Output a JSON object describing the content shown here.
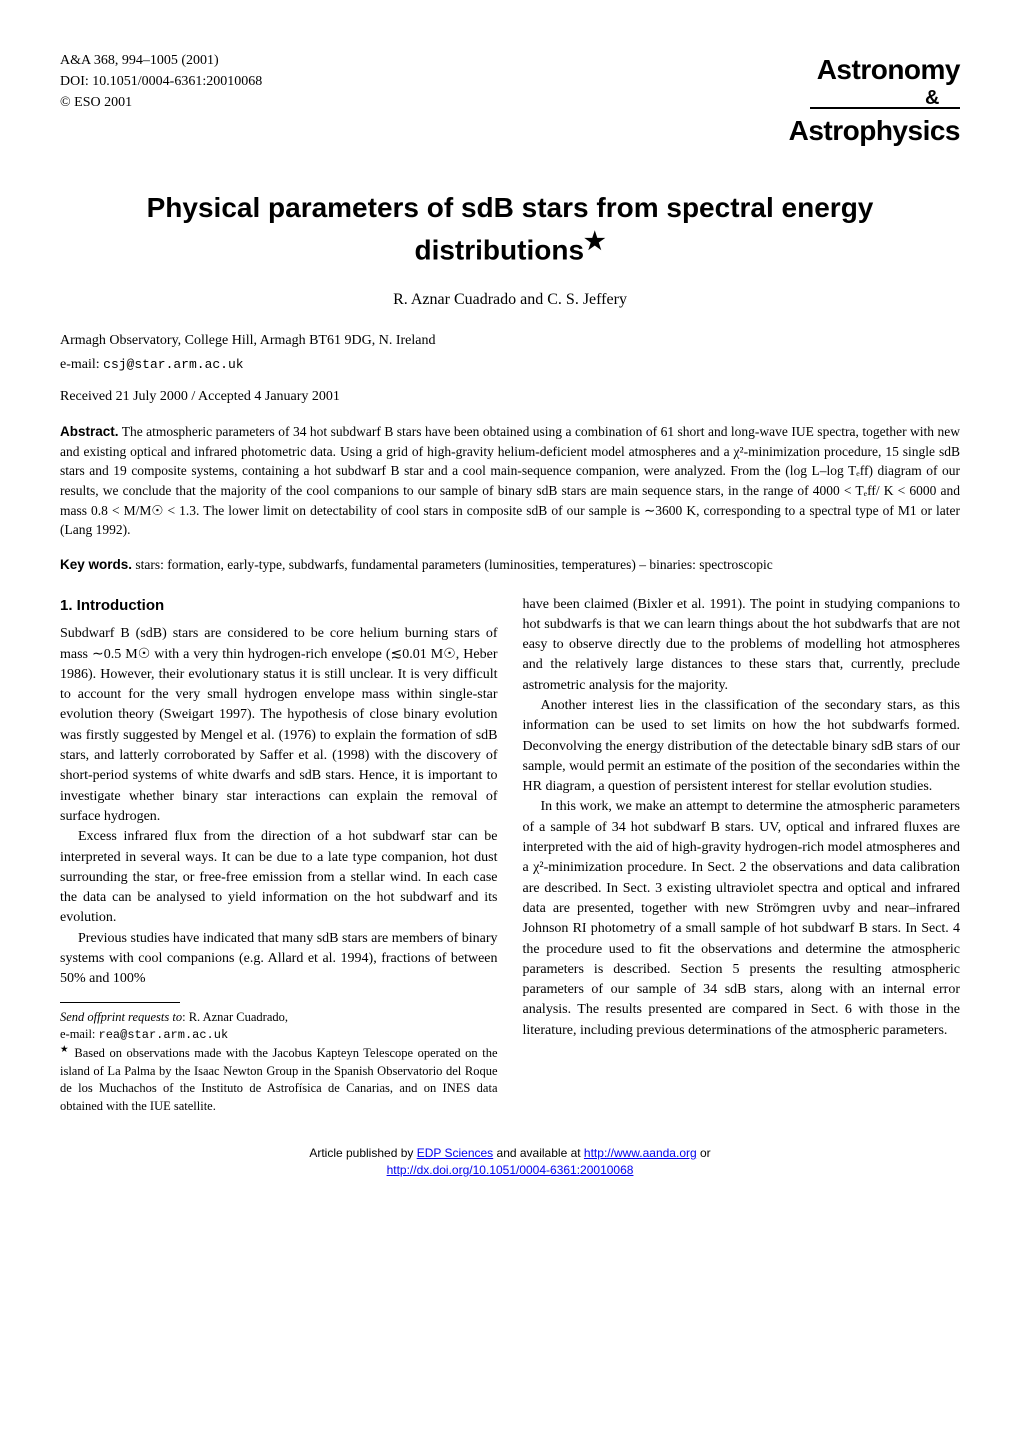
{
  "header": {
    "journal_ref": "A&A 368, 994–1005 (2001)",
    "doi": "DOI: 10.1051/0004-6361:20010068",
    "copyright": "© ESO 2001",
    "logo_line1": "Astronomy",
    "logo_amp": "&",
    "logo_line2": "Astrophysics"
  },
  "title": {
    "line1": "Physical parameters of sdB stars from spectral energy",
    "line2": "distributions",
    "star": "★"
  },
  "authors": "R. Aznar Cuadrado and C. S. Jeffery",
  "affiliation": {
    "text": "Armagh Observatory, College Hill, Armagh BT61 9DG, N. Ireland",
    "email_label": "e-mail: ",
    "email": "csj@star.arm.ac.uk"
  },
  "dates": "Received 21 July 2000 / Accepted 4 January 2001",
  "abstract": {
    "label": "Abstract.",
    "text": " The atmospheric parameters of 34 hot subdwarf B stars have been obtained using a combination of 61 short and long-wave IUE spectra, together with new and existing optical and infrared photometric data. Using a grid of high-gravity helium-deficient model atmospheres and a χ²-minimization procedure, 15 single sdB stars and 19 composite systems, containing a hot subdwarf B star and a cool main-sequence companion, were analyzed. From the (log L–log Tₑff) diagram of our results, we conclude that the majority of the cool companions to our sample of binary sdB stars are main sequence stars, in the range of 4000 < Tₑff/ K < 6000 and mass 0.8 < M/M☉ < 1.3. The lower limit on detectability of cool stars in composite sdB of our sample is ∼3600 K, corresponding to a spectral type of M1 or later (Lang 1992)."
  },
  "keywords": {
    "label": "Key words.",
    "text": " stars: formation, early-type, subdwarfs, fundamental parameters (luminosities, temperatures) – binaries: spectroscopic"
  },
  "section1": {
    "heading": "1. Introduction",
    "para1": "Subdwarf B (sdB) stars are considered to be core helium burning stars of mass ∼0.5 M☉ with a very thin hydrogen-rich envelope (≲0.01 M☉, Heber 1986). However, their evolutionary status it is still unclear. It is very difficult to account for the very small hydrogen envelope mass within single-star evolution theory (Sweigart 1997). The hypothesis of close binary evolution was firstly suggested by Mengel et al. (1976) to explain the formation of sdB stars, and latterly corroborated by Saffer et al. (1998) with the discovery of short-period systems of white dwarfs and sdB stars. Hence, it is important to investigate whether binary star interactions can explain the removal of surface hydrogen.",
    "para2": "Excess infrared flux from the direction of a hot subdwarf star can be interpreted in several ways. It can be due to a late type companion, hot dust surrounding the star, or free-free emission from a stellar wind. In each case the data can be analysed to yield information on the hot subdwarf and its evolution.",
    "para3": "Previous studies have indicated that many sdB stars are members of binary systems with cool companions (e.g. Allard et al. 1994), fractions of between 50% and 100%",
    "para4": "have been claimed (Bixler et al. 1991). The point in studying companions to hot subdwarfs is that we can learn things about the hot subdwarfs that are not easy to observe directly due to the problems of modelling hot atmospheres and the relatively large distances to these stars that, currently, preclude astrometric analysis for the majority.",
    "para5": "Another interest lies in the classification of the secondary stars, as this information can be used to set limits on how the hot subdwarfs formed. Deconvolving the energy distribution of the detectable binary sdB stars of our sample, would permit an estimate of the position of the secondaries within the HR diagram, a question of persistent interest for stellar evolution studies.",
    "para6": "In this work, we make an attempt to determine the atmospheric parameters of a sample of 34 hot subdwarf B stars. UV, optical and infrared fluxes are interpreted with the aid of high-gravity hydrogen-rich model atmospheres and a χ²-minimization procedure. In Sect. 2 the observations and data calibration are described. In Sect. 3 existing ultraviolet spectra and optical and infrared data are presented, together with new Strömgren uvby and near–infrared Johnson RI photometry of a small sample of hot subdwarf B stars. In Sect. 4 the procedure used to fit the observations and determine the atmospheric parameters is described. Section 5 presents the resulting atmospheric parameters of our sample of 34 sdB stars, along with an internal error analysis. The results presented are compared in Sect. 6 with those in the literature, including previous determinations of the atmospheric parameters."
  },
  "footnotes": {
    "offprint_label": "Send offprint requests to",
    "offprint_to": ": R. Aznar Cuadrado,",
    "email_label": "e-mail: ",
    "email": "rea@star.arm.ac.uk",
    "star_note": " Based on observations made with the Jacobus Kapteyn Telescope operated on the island of La Palma by the Isaac Newton Group in the Spanish Observatorio del Roque de los Muchachos of the Instituto de Astrofísica de Canarias, and on INES data obtained with the IUE satellite."
  },
  "footer": {
    "line1_pre": "Article published by ",
    "line1_link1": "EDP Sciences",
    "line1_mid": " and available at ",
    "line1_link2": "http://www.aanda.org",
    "line1_post": " or",
    "line2_link": "http://dx.doi.org/10.1051/0004-6361:20010068"
  }
}
